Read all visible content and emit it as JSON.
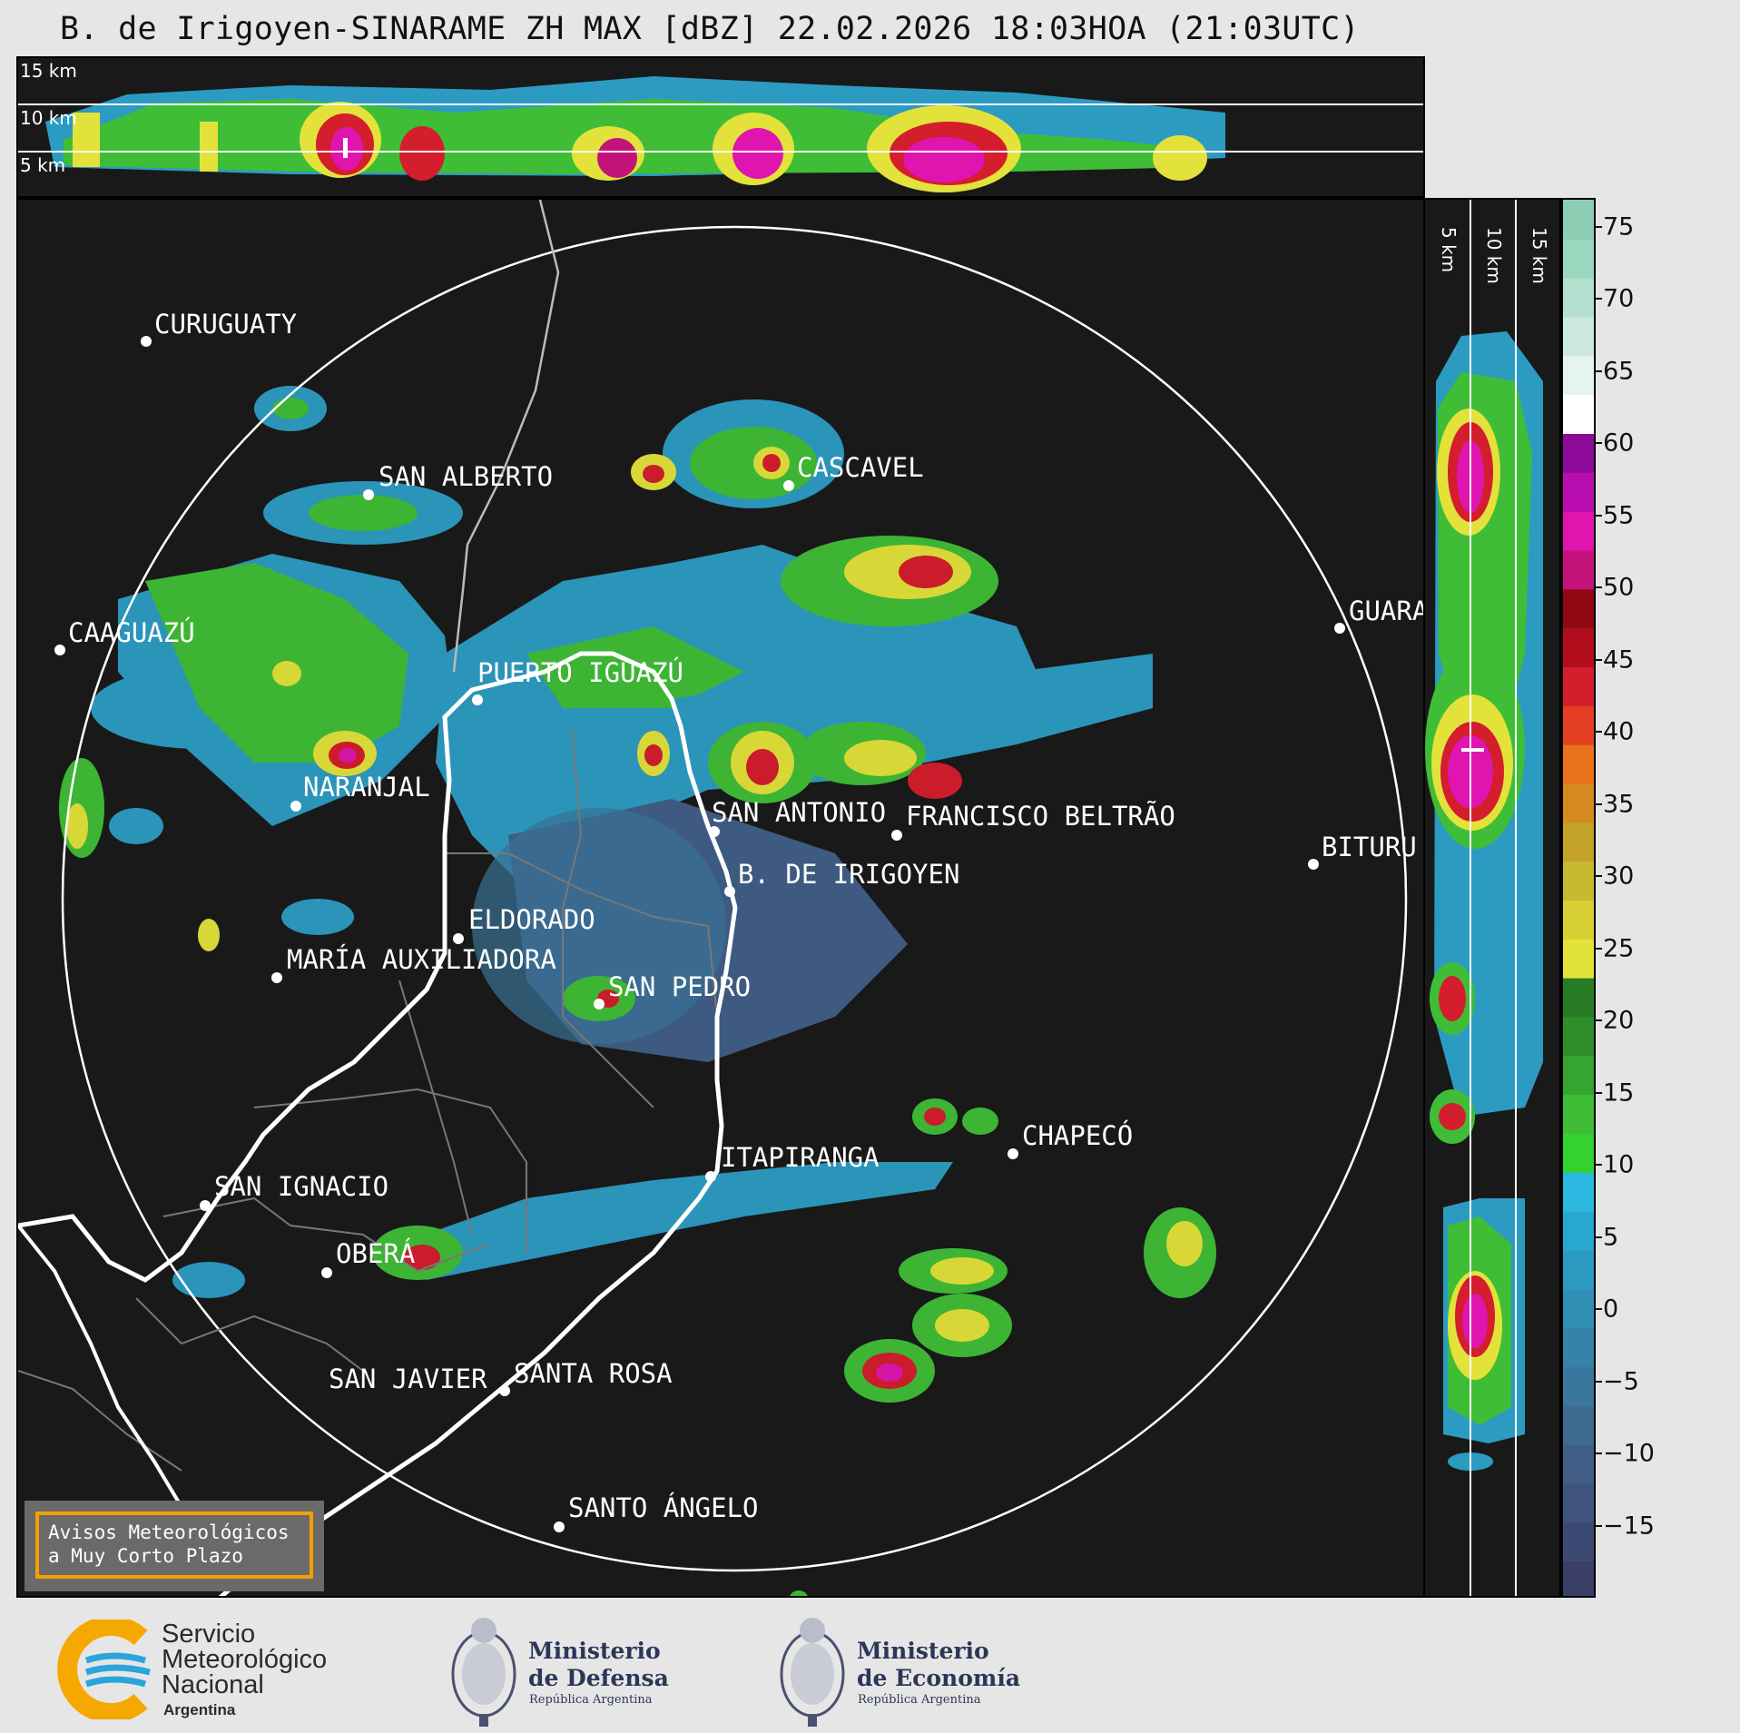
{
  "title": "B. de Irigoyen-SINARAME ZH MAX [dBZ] 22.02.2026 18:03HOA (21:03UTC)",
  "top_km_labels": [
    "15 km",
    "10 km",
    "5 km"
  ],
  "side_km_labels": [
    "5 km",
    "10 km",
    "15 km"
  ],
  "colorbar": {
    "ticks": [
      "75",
      "70",
      "65",
      "60",
      "55",
      "50",
      "45",
      "40",
      "35",
      "30",
      "25",
      "20",
      "15",
      "10",
      "5",
      "0",
      "−5",
      "−10",
      "−15"
    ],
    "colors": [
      "#3a3f66",
      "#3c4a73",
      "#3f547d",
      "#415e86",
      "#3f6a92",
      "#3b769d",
      "#3682a9",
      "#318eb5",
      "#2c9bc2",
      "#29a8cf",
      "#2bb8e0",
      "#35d12f",
      "#3fbd36",
      "#35a52f",
      "#2e8f2a",
      "#287b25",
      "#e3e23a",
      "#d8cf35",
      "#c8b932",
      "#c4a129",
      "#d68a22",
      "#e8731c",
      "#e43f23",
      "#d41d2d",
      "#b20d1d",
      "#920812",
      "#c3137b",
      "#e015b0",
      "#b80eb0",
      "#8e0a99",
      "#ffffff",
      "#e6f4ef",
      "#cde9df",
      "#b4e0cf",
      "#9bd6bf",
      "#8ccdb4"
    ]
  },
  "cities": [
    {
      "name": "CURUGUATY"
    },
    {
      "name": "SAN ALBERTO"
    },
    {
      "name": "CASCAVEL"
    },
    {
      "name": "CAAGUAZÚ"
    },
    {
      "name": "GUARA"
    },
    {
      "name": "PUERTO IGUAZÚ"
    },
    {
      "name": "NARANJAL"
    },
    {
      "name": "SAN ANTONIO"
    },
    {
      "name": "FRANCISCO BELTRÃO"
    },
    {
      "name": "B. DE IRIGOYEN"
    },
    {
      "name": "BITURU"
    },
    {
      "name": "ELDORADO"
    },
    {
      "name": "MARÍA AUXILIADORA"
    },
    {
      "name": "SAN PEDRO"
    },
    {
      "name": "CHAPECÓ"
    },
    {
      "name": "ITAPIRANGA"
    },
    {
      "name": "SAN IGNACIO"
    },
    {
      "name": "OBERÁ"
    },
    {
      "name": "SAN JAVIER"
    },
    {
      "name": "SANTA ROSA"
    },
    {
      "name": "SANTO ÁNGELO"
    }
  ],
  "avisos": {
    "line1": "Avisos Meteorológicos",
    "line2": "a Muy Corto Plazo"
  },
  "logos": {
    "smn": {
      "line1": "Servicio",
      "line2": "Meteorológico",
      "line3": "Nacional",
      "line4": "Argentina"
    },
    "defensa": {
      "line1": "Ministerio",
      "line2": "de Defensa",
      "line3": "República Argentina"
    },
    "economia": {
      "line1": "Ministerio",
      "line2": "de Economía",
      "line3": "República Argentina"
    }
  },
  "colors": {
    "background": "#191919",
    "frame": "#000000",
    "range_ring": "#ffffff",
    "avisos_border": "#f2a000"
  }
}
